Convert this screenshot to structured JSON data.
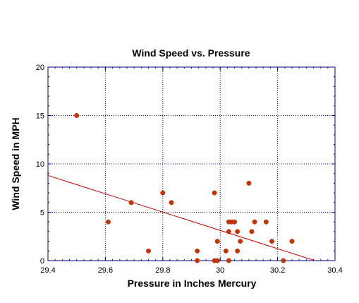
{
  "chart_data": {
    "type": "scatter",
    "title": "Wind Speed vs. Pressure",
    "xlabel": "Pressure in Inches Mercury",
    "ylabel": "Wind Speed in MPH",
    "xlim": [
      29.4,
      30.4
    ],
    "ylim": [
      0,
      20
    ],
    "xticks": [
      29.4,
      29.6,
      29.8,
      30,
      30.2,
      30.4
    ],
    "xtick_labels": [
      "29.4",
      "29.6",
      "29.8",
      "30",
      "30.2",
      "30.4"
    ],
    "yticks": [
      0,
      5,
      10,
      15,
      20
    ],
    "ytick_labels": [
      "0",
      "5",
      "10",
      "15",
      "20"
    ],
    "grid": true,
    "series": [
      {
        "points": [
          {
            "x": 29.5,
            "y": 15
          },
          {
            "x": 29.61,
            "y": 4
          },
          {
            "x": 29.69,
            "y": 6
          },
          {
            "x": 29.75,
            "y": 1
          },
          {
            "x": 29.8,
            "y": 7
          },
          {
            "x": 29.83,
            "y": 6
          },
          {
            "x": 29.92,
            "y": 1
          },
          {
            "x": 29.92,
            "y": 0
          },
          {
            "x": 29.98,
            "y": 7
          },
          {
            "x": 29.98,
            "y": 0
          },
          {
            "x": 29.99,
            "y": 2
          },
          {
            "x": 29.99,
            "y": 0
          },
          {
            "x": 30.02,
            "y": 1
          },
          {
            "x": 30.03,
            "y": 4
          },
          {
            "x": 30.03,
            "y": 3
          },
          {
            "x": 30.04,
            "y": 4
          },
          {
            "x": 30.05,
            "y": 4
          },
          {
            "x": 30.03,
            "y": 0
          },
          {
            "x": 30.06,
            "y": 3
          },
          {
            "x": 30.06,
            "y": 1
          },
          {
            "x": 30.07,
            "y": 2
          },
          {
            "x": 30.1,
            "y": 8
          },
          {
            "x": 30.11,
            "y": 3
          },
          {
            "x": 30.12,
            "y": 4
          },
          {
            "x": 30.16,
            "y": 4
          },
          {
            "x": 30.18,
            "y": 2
          },
          {
            "x": 30.22,
            "y": 0
          },
          {
            "x": 30.25,
            "y": 2
          }
        ],
        "color": "#cc3300"
      }
    ],
    "trendline": {
      "points": [
        {
          "x": 29.4,
          "y": 8.8
        },
        {
          "x": 30.33,
          "y": 0
        }
      ],
      "color": "#cc0000"
    },
    "colors": {
      "axis": "#000080",
      "grid": "#000080",
      "marker": "#cc3300",
      "trend": "#cc0000"
    }
  }
}
